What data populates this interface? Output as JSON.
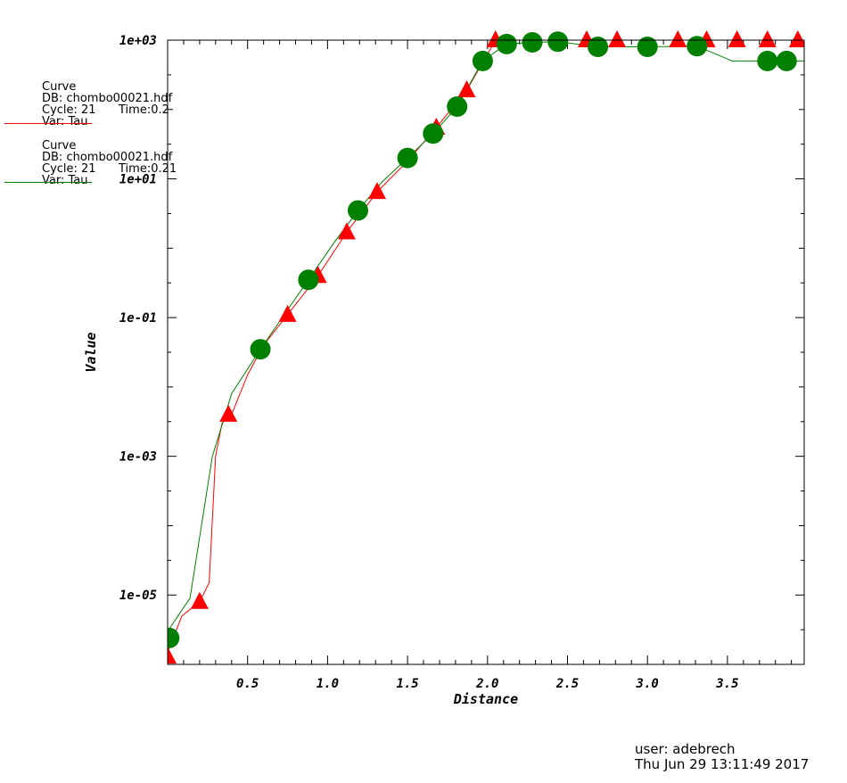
{
  "chart_data": {
    "type": "line",
    "title": "",
    "xlabel": "Distance",
    "ylabel": "Value",
    "y_scale": "log",
    "xlim": [
      0.0,
      3.98
    ],
    "ylim": [
      1e-06,
      1000
    ],
    "x_ticks": [
      0.5,
      1.0,
      1.5,
      2.0,
      2.5,
      3.0,
      3.5
    ],
    "x_tick_labels": [
      "0.5",
      "1.0",
      "1.5",
      "2.0",
      "2.5",
      "3.0",
      "3.5"
    ],
    "y_ticks": [
      1e-05,
      0.001,
      0.1,
      10,
      1000
    ],
    "y_tick_labels": [
      "1e-05",
      "1e-03",
      "1e-01",
      "1e+01",
      "1e+03"
    ],
    "grid": false,
    "series": [
      {
        "name": "Curve",
        "color": "#ff0000",
        "marker": "triangle",
        "x": [
          0.0,
          0.09,
          0.2,
          0.26,
          0.3,
          0.34,
          0.4,
          0.5,
          0.6,
          0.75,
          0.94,
          1.12,
          1.31,
          1.5,
          1.68,
          1.87,
          2.05,
          2.25,
          2.43,
          2.62,
          2.81,
          3.0,
          3.19,
          3.37,
          3.56,
          3.75,
          3.94,
          3.98
        ],
        "y": [
          1.5e-06,
          5e-06,
          8e-06,
          1.5e-05,
          0.001,
          0.003,
          0.004,
          0.015,
          0.04,
          0.11,
          0.4,
          1.7,
          6.5,
          18,
          55,
          190,
          1000,
          1000,
          1000,
          1000,
          1000,
          1000,
          1000,
          1000,
          1000,
          1000,
          1000,
          1000
        ],
        "marker_x": [
          0.0,
          0.2,
          0.38,
          0.75,
          0.94,
          1.12,
          1.31,
          1.68,
          1.87,
          2.05,
          2.62,
          2.81,
          3.19,
          3.37,
          3.56,
          3.75,
          3.94
        ],
        "marker_y": [
          1.3e-06,
          8e-06,
          0.004,
          0.11,
          0.4,
          1.7,
          6.5,
          55,
          190,
          1000,
          1000,
          1000,
          1000,
          1000,
          1000,
          1000,
          1000
        ]
      },
      {
        "name": "Curve",
        "color": "#008000",
        "marker": "circle",
        "x": [
          0.0,
          0.14,
          0.28,
          0.4,
          0.58,
          0.74,
          0.88,
          1.04,
          1.19,
          1.34,
          1.5,
          1.66,
          1.81,
          1.97,
          2.12,
          2.28,
          2.44,
          2.69,
          3.0,
          3.31,
          3.53,
          3.75,
          3.87,
          3.98
        ],
        "y": [
          3e-06,
          9e-06,
          0.001,
          0.008,
          0.035,
          0.12,
          0.35,
          1.2,
          3.5,
          9,
          20,
          45,
          110,
          500,
          880,
          930,
          950,
          800,
          800,
          820,
          500,
          500,
          500,
          500
        ],
        "marker_x": [
          0.01,
          0.58,
          0.88,
          1.19,
          1.5,
          1.66,
          1.81,
          1.97,
          2.12,
          2.28,
          2.44,
          2.69,
          3.0,
          3.31,
          3.75,
          3.87
        ],
        "marker_y": [
          2.4e-06,
          0.035,
          0.35,
          3.5,
          20,
          45,
          110,
          500,
          880,
          930,
          950,
          800,
          800,
          820,
          500,
          500
        ]
      }
    ]
  },
  "legend": [
    {
      "title": "Curve",
      "db": "DB: chombo00021.hdf",
      "cycle": "Cycle: 21",
      "time": "Time:0.2",
      "var": "Var: Tau",
      "color": "#ff0000"
    },
    {
      "title": "Curve",
      "db": "DB: chombo00021.hdf",
      "cycle": "Cycle: 21",
      "time": "Time:0.21",
      "var": "Var: Tau",
      "color": "#008000"
    }
  ],
  "footer": {
    "user": "user: adebrech",
    "date": "Thu Jun 29 13:11:49 2017"
  }
}
